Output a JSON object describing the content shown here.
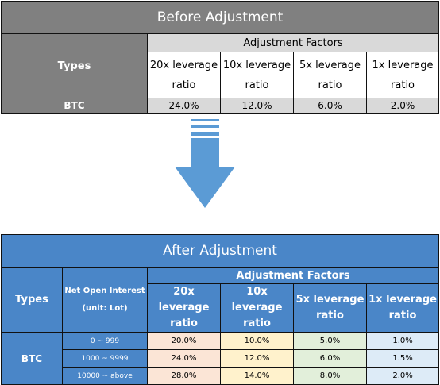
{
  "before": {
    "title": "Before Adjustment",
    "types_label": "Types",
    "factors_label": "Adjustment Factors",
    "leverage_headers": [
      {
        "line1": "20x leverage",
        "line2": "ratio"
      },
      {
        "line1": "10x leverage",
        "line2": "ratio"
      },
      {
        "line1": "5x leverage",
        "line2": "ratio"
      },
      {
        "line1": "1x leverage",
        "line2": "ratio"
      }
    ],
    "row": {
      "type": "BTC",
      "values": [
        "24.0%",
        "12.0%",
        "6.0%",
        "2.0%"
      ]
    }
  },
  "arrow": {
    "icon": "down-arrow-icon",
    "color": "#5b9bd5"
  },
  "after": {
    "title": "After Adjustment",
    "types_label": "Types",
    "noi_label_line1": "Net Open Interest",
    "noi_label_line2": "(unit: Lot)",
    "factors_label": "Adjustment Factors",
    "leverage_headers": [
      {
        "line1": "20x leverage",
        "line2": "ratio"
      },
      {
        "line1": "10x leverage",
        "line2": "ratio"
      },
      {
        "line1": "5x leverage",
        "line2": "ratio"
      },
      {
        "line1": "1x leverage",
        "line2": "ratio"
      }
    ],
    "type": "BTC",
    "rows": [
      {
        "range": "0 ~ 999",
        "values": [
          "20.0%",
          "10.0%",
          "5.0%",
          "1.0%"
        ]
      },
      {
        "range": "1000 ~ 9999",
        "values": [
          "24.0%",
          "12.0%",
          "6.0%",
          "1.5%"
        ]
      },
      {
        "range": "10000 ~ above",
        "values": [
          "28.0%",
          "14.0%",
          "8.0%",
          "2.0%"
        ]
      }
    ],
    "column_colors": [
      "#fbe5d6",
      "#fff2cc",
      "#e2efda",
      "#ddebf7"
    ]
  }
}
